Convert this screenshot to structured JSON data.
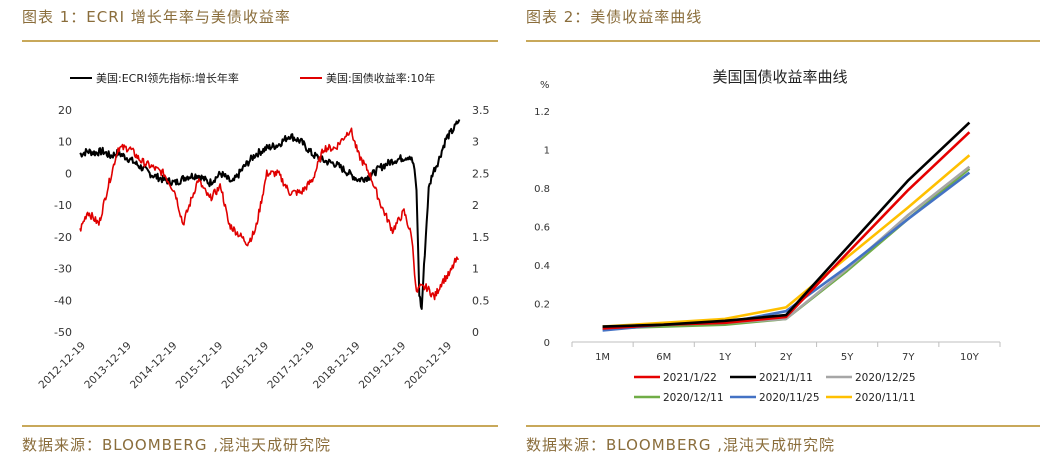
{
  "left": {
    "fig_title": "图表 1：ECRI 增长年率与美债收益率",
    "source": "数据来源：BLOOMBERG ,混沌天成研究院",
    "chart_data": {
      "type": "line",
      "title": "",
      "legend_placement": "top",
      "series": [
        {
          "name": "美国:ECRI领先指标:增长年率",
          "color": "#000000",
          "axis": "left",
          "points": [
            [
              "2012-11-01",
              6
            ],
            [
              "2013-01-01",
              7
            ],
            [
              "2013-03-01",
              6.5
            ],
            [
              "2013-05-01",
              7
            ],
            [
              "2013-07-01",
              5.5
            ],
            [
              "2013-09-01",
              6.5
            ],
            [
              "2013-12-01",
              4.5
            ],
            [
              "2014-03-01",
              2
            ],
            [
              "2014-06-01",
              -0.5
            ],
            [
              "2014-09-01",
              -2
            ],
            [
              "2014-12-01",
              -3
            ],
            [
              "2015-03-01",
              -1
            ],
            [
              "2015-06-01",
              -0.5
            ],
            [
              "2015-09-01",
              -3
            ],
            [
              "2015-12-01",
              0
            ],
            [
              "2016-03-01",
              -3
            ],
            [
              "2016-06-01",
              2
            ],
            [
              "2016-09-01",
              6
            ],
            [
              "2016-12-01",
              8
            ],
            [
              "2017-03-01",
              9
            ],
            [
              "2017-06-01",
              12
            ],
            [
              "2017-09-01",
              10
            ],
            [
              "2017-12-01",
              6
            ],
            [
              "2018-03-01",
              4
            ],
            [
              "2018-06-01",
              3
            ],
            [
              "2018-09-01",
              0.5
            ],
            [
              "2018-12-01",
              -2
            ],
            [
              "2019-03-01",
              -1
            ],
            [
              "2019-06-01",
              2
            ],
            [
              "2019-09-01",
              4
            ],
            [
              "2019-12-01",
              5
            ],
            [
              "2020-01-15",
              5.5
            ],
            [
              "2020-02-15",
              3
            ],
            [
              "2020-03-10",
              -5
            ],
            [
              "2020-04-01",
              -38
            ],
            [
              "2020-04-20",
              -43
            ],
            [
              "2020-05-15",
              -25
            ],
            [
              "2020-06-15",
              -5
            ],
            [
              "2020-07-15",
              0
            ],
            [
              "2020-09-01",
              4
            ],
            [
              "2020-11-01",
              11
            ],
            [
              "2021-01-01",
              14
            ],
            [
              "2021-02-15",
              17
            ]
          ]
        },
        {
          "name": "美国:国债收益率:10年",
          "color": "#e00000",
          "axis": "right",
          "points": [
            [
              "2012-11-01",
              1.6
            ],
            [
              "2013-01-01",
              1.9
            ],
            [
              "2013-04-01",
              1.7
            ],
            [
              "2013-06-01",
              2.2
            ],
            [
              "2013-09-01",
              2.9
            ],
            [
              "2013-12-01",
              2.9
            ],
            [
              "2014-03-01",
              2.7
            ],
            [
              "2014-06-01",
              2.6
            ],
            [
              "2014-09-01",
              2.5
            ],
            [
              "2014-12-01",
              2.2
            ],
            [
              "2015-02-01",
              1.7
            ],
            [
              "2015-06-01",
              2.4
            ],
            [
              "2015-09-01",
              2.1
            ],
            [
              "2015-12-01",
              2.3
            ],
            [
              "2016-02-01",
              1.7
            ],
            [
              "2016-07-01",
              1.4
            ],
            [
              "2016-09-01",
              1.6
            ],
            [
              "2016-12-01",
              2.5
            ],
            [
              "2017-03-01",
              2.5
            ],
            [
              "2017-06-01",
              2.2
            ],
            [
              "2017-09-01",
              2.2
            ],
            [
              "2017-12-01",
              2.4
            ],
            [
              "2018-03-01",
              2.9
            ],
            [
              "2018-06-01",
              2.9
            ],
            [
              "2018-10-01",
              3.2
            ],
            [
              "2018-12-01",
              2.8
            ],
            [
              "2019-03-01",
              2.5
            ],
            [
              "2019-06-01",
              2.0
            ],
            [
              "2019-09-01",
              1.6
            ],
            [
              "2019-12-01",
              1.9
            ],
            [
              "2020-02-01",
              1.5
            ],
            [
              "2020-03-10",
              0.6
            ],
            [
              "2020-04-01",
              0.7
            ],
            [
              "2020-06-01",
              0.7
            ],
            [
              "2020-08-01",
              0.55
            ],
            [
              "2020-10-01",
              0.8
            ],
            [
              "2020-12-01",
              0.92
            ],
            [
              "2021-01-10",
              1.1
            ],
            [
              "2021-02-10",
              1.15
            ]
          ]
        }
      ],
      "x_ticks": [
        "2012-12-19",
        "2013-12-19",
        "2014-12-19",
        "2015-12-19",
        "2016-12-19",
        "2017-12-19",
        "2018-12-19",
        "2019-12-19",
        "2020-12-19"
      ],
      "x_range": [
        "2012-11-01",
        "2021-02-20"
      ],
      "y_left": {
        "min": -50,
        "max": 20,
        "ticks": [
          -50,
          -40,
          -30,
          -20,
          -10,
          0,
          10,
          20
        ]
      },
      "y_right": {
        "min": 0,
        "max": 3.5,
        "ticks": [
          0,
          0.5,
          1,
          1.5,
          2,
          2.5,
          3,
          3.5
        ]
      },
      "grid": false
    }
  },
  "right": {
    "fig_title": "图表 2：美债收益率曲线",
    "source": "数据来源：BLOOMBERG ,混沌天成研究院",
    "chart_data": {
      "type": "line",
      "title": "美国国债收益率曲线",
      "ylabel": "%",
      "categories": [
        "1M",
        "6M",
        "1Y",
        "2Y",
        "5Y",
        "7Y",
        "10Y"
      ],
      "y_range": [
        0,
        1.2
      ],
      "y_ticks": [
        0,
        0.2,
        0.4,
        0.6,
        0.8,
        1,
        1.2
      ],
      "grid": false,
      "legend_placement": "bottom",
      "series": [
        {
          "name": "2021/1/22",
          "color": "#e60000",
          "values": [
            0.07,
            0.09,
            0.1,
            0.13,
            0.46,
            0.79,
            1.09
          ]
        },
        {
          "name": "2021/1/11",
          "color": "#000000",
          "values": [
            0.08,
            0.09,
            0.11,
            0.14,
            0.49,
            0.84,
            1.14
          ]
        },
        {
          "name": "2020/12/25",
          "color": "#a6a6a6",
          "values": [
            0.07,
            0.09,
            0.1,
            0.12,
            0.38,
            0.66,
            0.91
          ]
        },
        {
          "name": "2020/12/11",
          "color": "#70ad47",
          "values": [
            0.07,
            0.08,
            0.09,
            0.12,
            0.37,
            0.64,
            0.9
          ]
        },
        {
          "name": "2020/11/25",
          "color": "#4472c4",
          "values": [
            0.06,
            0.09,
            0.1,
            0.16,
            0.39,
            0.64,
            0.88
          ]
        },
        {
          "name": "2020/11/11",
          "color": "#ffc000",
          "values": [
            0.08,
            0.1,
            0.12,
            0.18,
            0.44,
            0.7,
            0.97
          ]
        }
      ]
    }
  }
}
